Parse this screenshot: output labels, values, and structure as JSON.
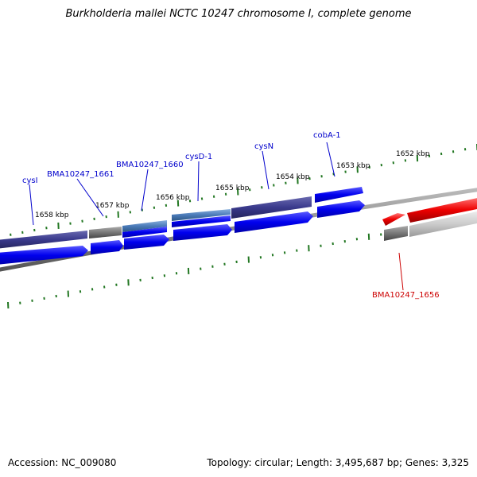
{
  "map": {
    "title": "Burkholderia mallei NCTC 10247 chromosome I, complete genome",
    "accession_text": "Accession: NC_009080",
    "summary_text": "Topology: circular; Length: 3,495,687 bp; Genes: 3,325",
    "ticks": [
      "1652 kbp",
      "1653 kbp",
      "1654 kbp",
      "1655 kbp",
      "1656 kbp",
      "1657 kbp",
      "1658 kbp"
    ],
    "genes": [
      {
        "label": "cobA-1"
      },
      {
        "label": "cysN"
      },
      {
        "label": "cysD-1"
      },
      {
        "label": "BMA10247_1660"
      },
      {
        "label": "BMA10247_1661"
      },
      {
        "label": "cysI"
      },
      {
        "label": "BMA10247_1656"
      }
    ],
    "colors": {
      "forward_label": "#0000cc",
      "reverse_label": "#cc0000",
      "tick": "#227722",
      "cds": "#0000ee",
      "cds_dark": "#3a3a8c",
      "cds_light": "#4a7ab8",
      "gray": "#777777",
      "red": "#ee0000",
      "backbone": "#8a8a8a"
    }
  }
}
